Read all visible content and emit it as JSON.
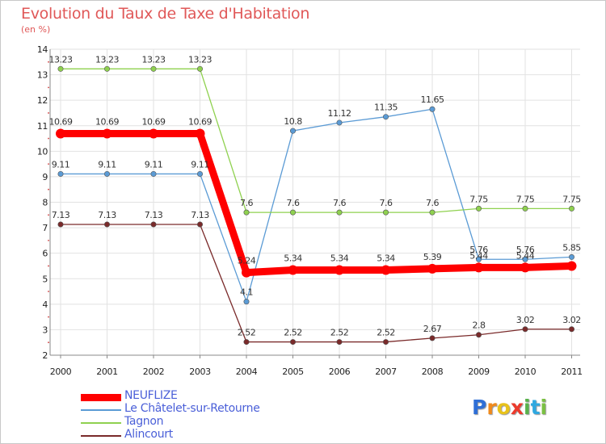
{
  "title": "Evolution du Taux de Taxe d'Habitation",
  "subtitle": "(en %)",
  "logo": {
    "letters": [
      "P",
      "r",
      "o",
      "x",
      "i",
      "t",
      "i"
    ],
    "colors": [
      "#2f6fd6",
      "#f08a1c",
      "#e8c21b",
      "#ec3a2c",
      "#58b24c",
      "#2fa8e0",
      "#7bc043"
    ]
  },
  "chart_data": {
    "type": "line",
    "title": "Evolution du Taux de Taxe d'Habitation",
    "ylabel": "(en %)",
    "xlabel": "",
    "x": [
      "2000",
      "2001",
      "2002",
      "2003",
      "2004",
      "2005",
      "2006",
      "2007",
      "2008",
      "2009",
      "2010",
      "2011"
    ],
    "ylim": [
      2,
      14
    ],
    "yticks": [
      "2",
      "3",
      "4",
      "5",
      "6",
      "7",
      "8",
      "9",
      "10",
      "11",
      "12",
      "13",
      "14"
    ],
    "grid": true,
    "legend_position": "bottom-left",
    "series": [
      {
        "name": "NEUFLIZE",
        "color": "#ff0000",
        "style": "thick",
        "values": [
          10.69,
          10.69,
          10.69,
          10.69,
          5.24,
          5.34,
          5.34,
          5.34,
          5.39,
          5.44,
          5.44,
          5.5
        ],
        "labels": [
          "10.69",
          "10.69",
          "10.69",
          "10.69",
          "5.24",
          "5.34",
          "5.34",
          "5.34",
          "5.39",
          "5.44",
          "5.44",
          ""
        ]
      },
      {
        "name": "Le Châtelet-sur-Retourne",
        "color": "#5b9bd5",
        "style": "thin",
        "values": [
          9.11,
          9.11,
          9.11,
          9.11,
          4.1,
          10.8,
          11.12,
          11.35,
          11.65,
          5.76,
          5.76,
          5.85
        ],
        "labels": [
          "9.11",
          "9.11",
          "9.11",
          "9.11",
          "4.1",
          "10.8",
          "11.12",
          "11.35",
          "11.65",
          "5.76",
          "5.76",
          "5.85"
        ]
      },
      {
        "name": "Tagnon",
        "color": "#8fd14f",
        "style": "thin",
        "values": [
          13.23,
          13.23,
          13.23,
          13.23,
          7.6,
          7.6,
          7.6,
          7.6,
          7.6,
          7.75,
          7.75,
          7.75
        ],
        "labels": [
          "13.23",
          "13.23",
          "13.23",
          "13.23",
          "7.6",
          "7.6",
          "7.6",
          "7.6",
          "7.6",
          "7.75",
          "7.75",
          "7.75"
        ]
      },
      {
        "name": "Alincourt",
        "color": "#7a2a2a",
        "style": "thin",
        "values": [
          7.13,
          7.13,
          7.13,
          7.13,
          2.52,
          2.52,
          2.52,
          2.52,
          2.67,
          2.8,
          3.02,
          3.02
        ],
        "labels": [
          "7.13",
          "7.13",
          "7.13",
          "7.13",
          "2.52",
          "2.52",
          "2.52",
          "2.52",
          "2.67",
          "2.8",
          "3.02",
          "3.02"
        ]
      }
    ]
  }
}
